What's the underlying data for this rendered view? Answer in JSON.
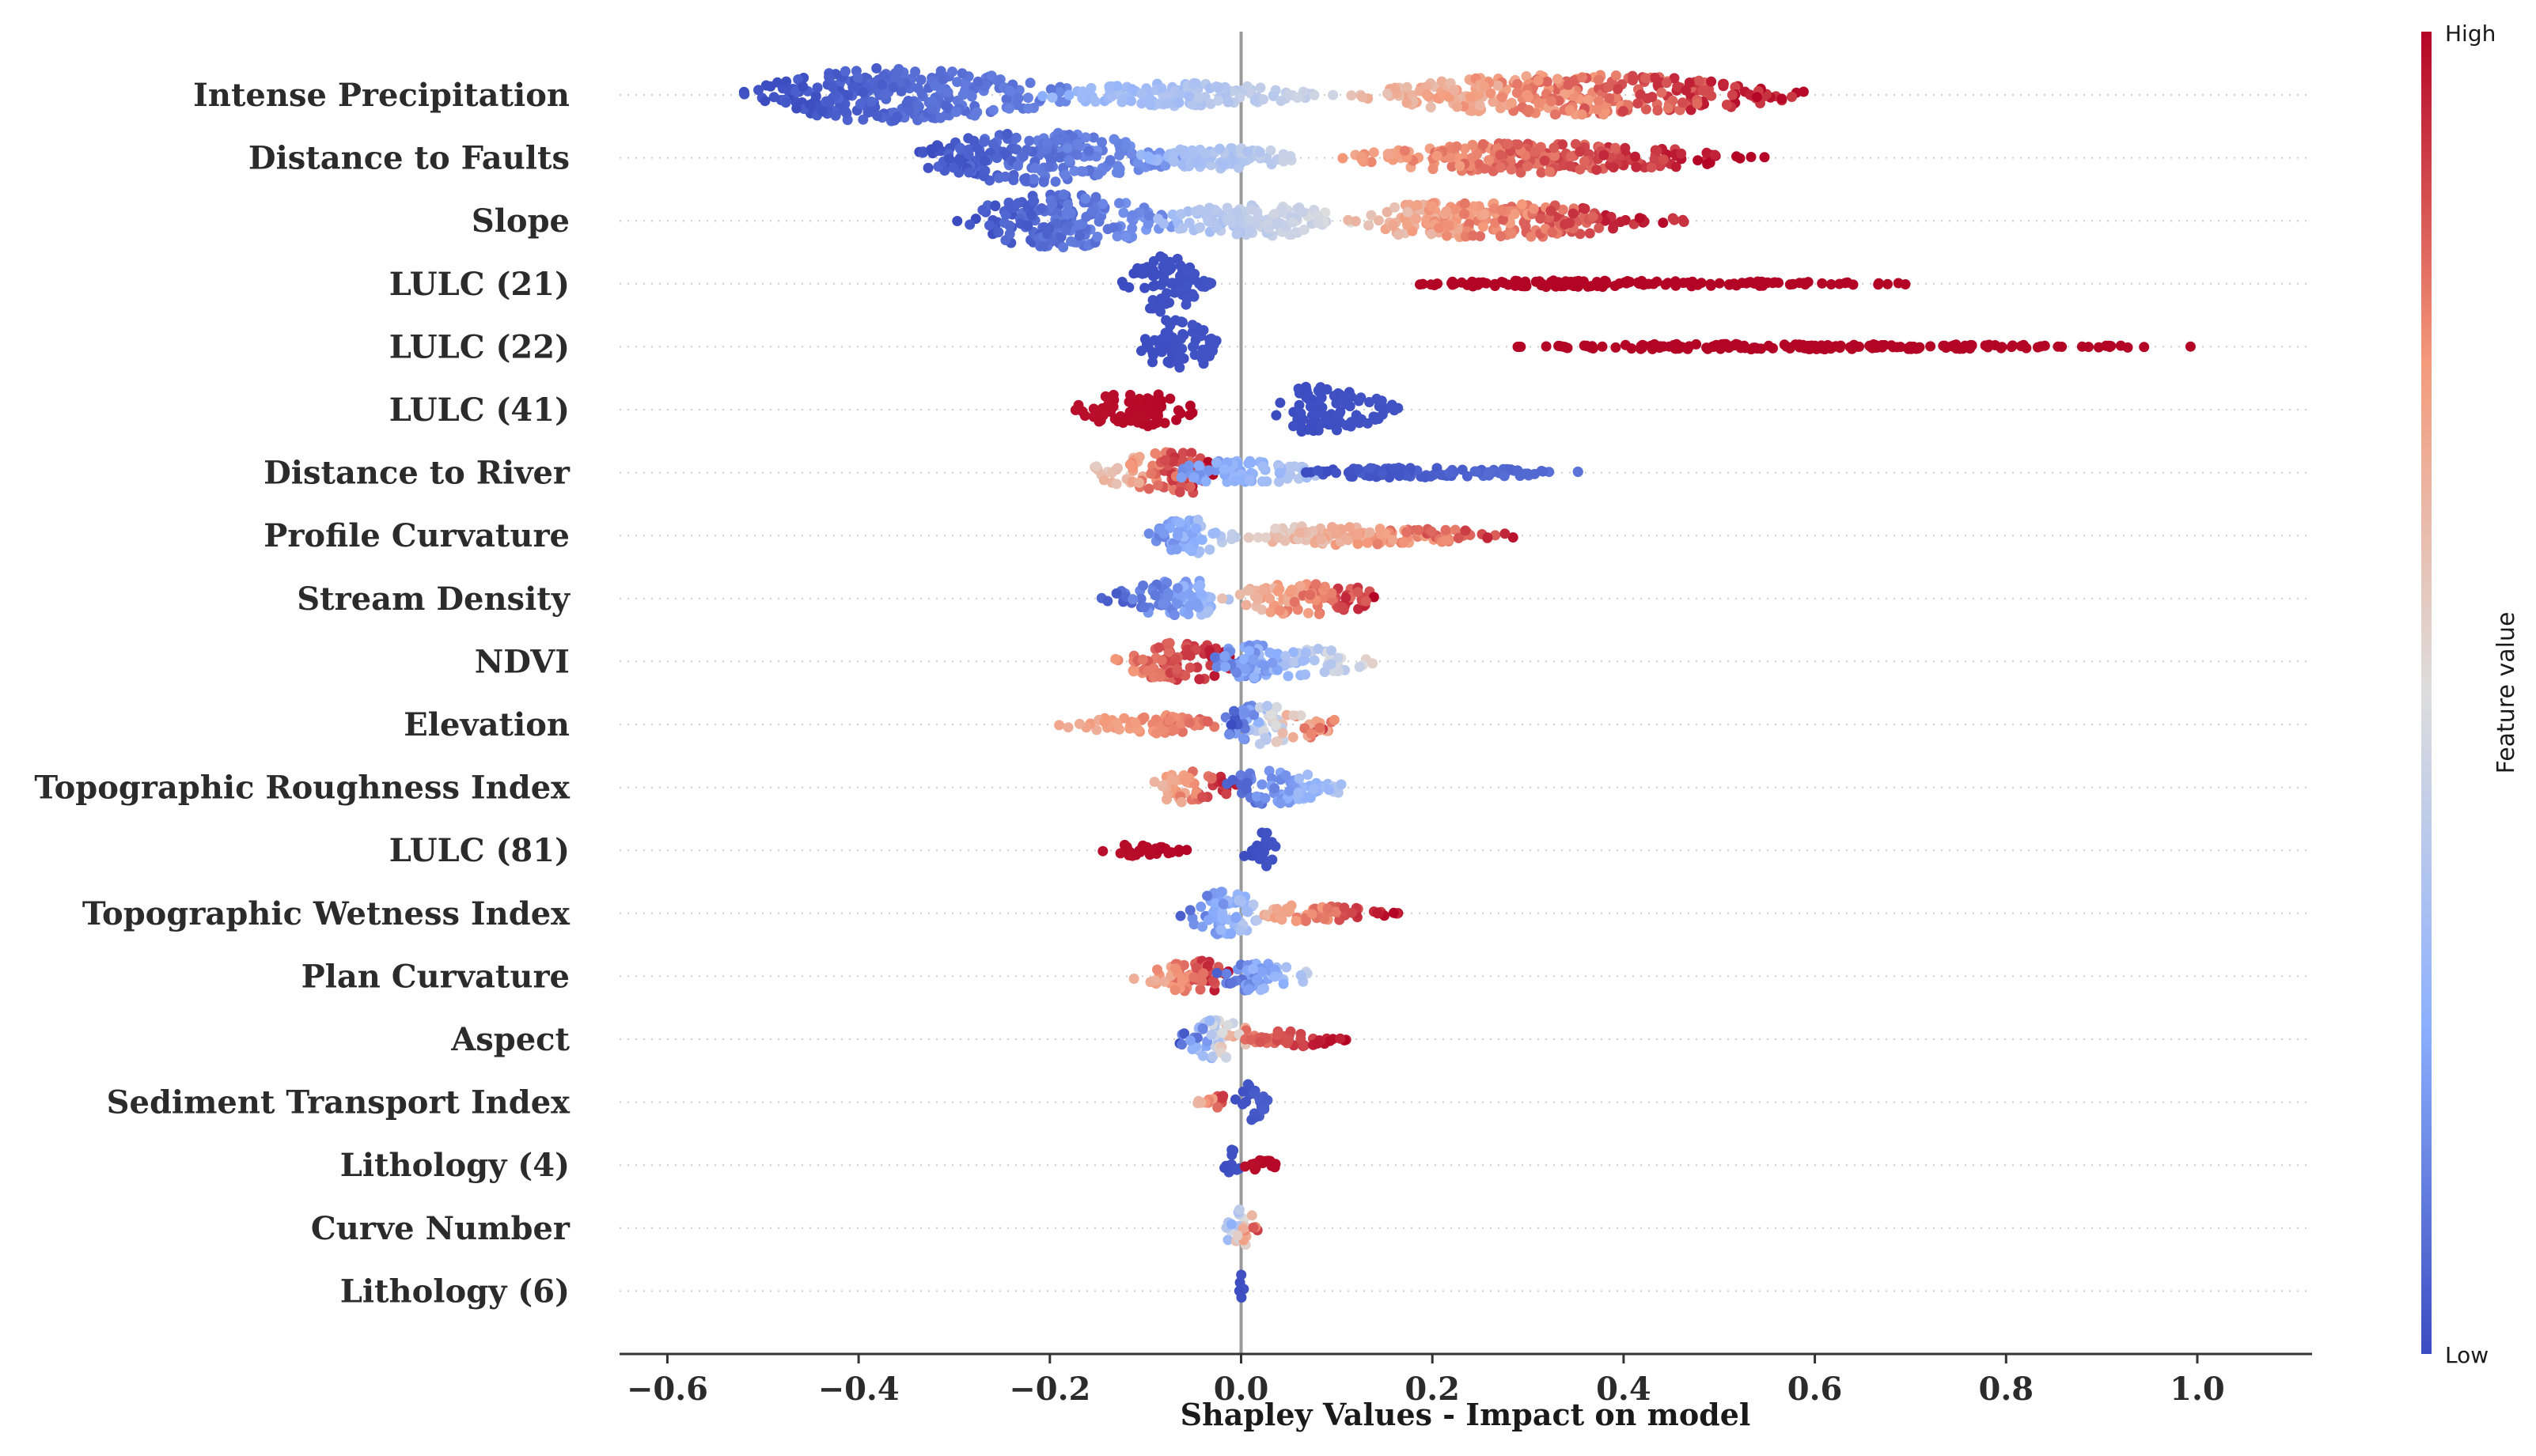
{
  "chart_data": {
    "type": "scatter",
    "subtype": "beeswarm",
    "xlabel": "Shapley Values - Impact on model",
    "xlim": [
      -0.65,
      1.12
    ],
    "xticks": [
      -0.6,
      -0.4,
      -0.2,
      0.0,
      0.2,
      0.4,
      0.6,
      0.8,
      1.0
    ],
    "xtick_labels": [
      "−0.6",
      "−0.4",
      "−0.2",
      "0.0",
      "0.2",
      "0.4",
      "0.6",
      "0.8",
      "1.0"
    ],
    "zero_line": true,
    "row_gridlines": "dotted",
    "colormap": {
      "name": "coolwarm",
      "low_color": "#3b4cc0",
      "mid_color": "#dddddd",
      "high_color": "#b40426",
      "label": "Feature value",
      "high_label": "High",
      "low_label": "Low"
    },
    "features": [
      {
        "name": "Intense Precipitation",
        "segments": [
          {
            "from": -0.53,
            "to": -0.15,
            "fv": [
              0.0,
              0.15
            ],
            "peak": -0.37,
            "thick": 1.0
          },
          {
            "from": -0.22,
            "to": 0.1,
            "fv": [
              0.25,
              0.45
            ],
            "peak": -0.05,
            "thick": 0.45
          },
          {
            "from": 0.1,
            "to": 0.61,
            "fv": [
              0.6,
              1.0
            ],
            "peak": 0.35,
            "thick": 0.75
          }
        ]
      },
      {
        "name": "Distance to Faults",
        "segments": [
          {
            "from": -0.36,
            "to": -0.05,
            "fv": [
              0.0,
              0.2
            ],
            "peak": -0.22,
            "thick": 0.95
          },
          {
            "from": -0.12,
            "to": 0.08,
            "fv": [
              0.25,
              0.45
            ],
            "peak": -0.03,
            "thick": 0.4
          },
          {
            "from": 0.09,
            "to": 0.55,
            "fv": [
              0.7,
              1.0
            ],
            "peak": 0.3,
            "thick": 0.55
          }
        ]
      },
      {
        "name": "Slope",
        "segments": [
          {
            "from": -0.3,
            "to": -0.05,
            "fv": [
              0.0,
              0.2
            ],
            "peak": -0.2,
            "thick": 1.0
          },
          {
            "from": -0.1,
            "to": 0.12,
            "fv": [
              0.3,
              0.5
            ],
            "peak": 0.02,
            "thick": 0.6
          },
          {
            "from": 0.1,
            "to": 0.47,
            "fv": [
              0.6,
              1.0
            ],
            "peak": 0.22,
            "thick": 0.7
          }
        ]
      },
      {
        "name": "LULC (21)",
        "segments": [
          {
            "from": -0.13,
            "to": -0.03,
            "fv": [
              0.0,
              0.02
            ],
            "peak": -0.08,
            "thick": 1.05
          },
          {
            "from": 0.17,
            "to": 0.74,
            "fv": [
              1.0,
              1.0
            ],
            "peak": 0.3,
            "thick": 0.12
          }
        ]
      },
      {
        "name": "LULC (22)",
        "segments": [
          {
            "from": -0.11,
            "to": -0.02,
            "fv": [
              0.0,
              0.02
            ],
            "peak": -0.07,
            "thick": 1.05
          },
          {
            "from": 0.28,
            "to": 1.04,
            "fv": [
              1.0,
              1.0
            ],
            "peak": 0.5,
            "thick": 0.1
          }
        ]
      },
      {
        "name": "LULC (41)",
        "segments": [
          {
            "from": -0.18,
            "to": -0.04,
            "fv": [
              0.98,
              1.0
            ],
            "peak": -0.11,
            "thick": 0.65
          },
          {
            "from": 0.03,
            "to": 0.17,
            "fv": [
              0.0,
              0.02
            ],
            "peak": 0.07,
            "thick": 0.85
          }
        ]
      },
      {
        "name": "Distance to River",
        "segments": [
          {
            "from": -0.17,
            "to": -0.02,
            "fv": [
              0.55,
              1.0
            ],
            "peak": -0.06,
            "thick": 0.8
          },
          {
            "from": -0.08,
            "to": 0.1,
            "fv": [
              0.15,
              0.4
            ],
            "peak": -0.01,
            "thick": 0.45
          },
          {
            "from": 0.05,
            "to": 0.39,
            "fv": [
              0.0,
              0.1
            ],
            "peak": 0.15,
            "thick": 0.18
          }
        ]
      },
      {
        "name": "Profile Curvature",
        "segments": [
          {
            "from": -0.1,
            "to": 0.0,
            "fv": [
              0.1,
              0.45
            ],
            "peak": -0.05,
            "thick": 0.7
          },
          {
            "from": 0.0,
            "to": 0.33,
            "fv": [
              0.55,
              1.0
            ],
            "peak": 0.06,
            "thick": 0.35
          }
        ]
      },
      {
        "name": "Stream Density",
        "segments": [
          {
            "from": -0.15,
            "to": -0.01,
            "fv": [
              0.0,
              0.35
            ],
            "peak": -0.05,
            "thick": 0.7
          },
          {
            "from": -0.02,
            "to": 0.17,
            "fv": [
              0.6,
              1.0
            ],
            "peak": 0.06,
            "thick": 0.6
          }
        ]
      },
      {
        "name": "NDVI",
        "segments": [
          {
            "from": -0.14,
            "to": 0.0,
            "fv": [
              0.75,
              1.0
            ],
            "peak": -0.06,
            "thick": 0.75
          },
          {
            "from": -0.04,
            "to": 0.15,
            "fv": [
              0.1,
              0.55
            ],
            "peak": 0.01,
            "thick": 0.65
          }
        ]
      },
      {
        "name": "Elevation",
        "segments": [
          {
            "from": -0.21,
            "to": -0.02,
            "fv": [
              0.65,
              0.85
            ],
            "peak": -0.07,
            "thick": 0.35
          },
          {
            "from": -0.03,
            "to": 0.11,
            "fv": [
              0.0,
              1.0
            ],
            "peak": 0.02,
            "thick": 0.75
          }
        ]
      },
      {
        "name": "Topographic Roughness Index",
        "segments": [
          {
            "from": -0.1,
            "to": 0.0,
            "fv": [
              0.6,
              1.0
            ],
            "peak": -0.05,
            "thick": 0.65
          },
          {
            "from": -0.02,
            "to": 0.12,
            "fv": [
              0.05,
              0.4
            ],
            "peak": 0.02,
            "thick": 0.65
          }
        ]
      },
      {
        "name": "LULC (81)",
        "segments": [
          {
            "from": -0.15,
            "to": -0.05,
            "fv": [
              0.98,
              1.0
            ],
            "peak": -0.11,
            "thick": 0.22
          },
          {
            "from": 0.0,
            "to": 0.04,
            "fv": [
              0.0,
              0.02
            ],
            "peak": 0.02,
            "thick": 0.75
          }
        ]
      },
      {
        "name": "Topographic Wetness Index",
        "segments": [
          {
            "from": -0.07,
            "to": 0.04,
            "fv": [
              0.05,
              0.45
            ],
            "peak": -0.02,
            "thick": 0.8
          },
          {
            "from": 0.02,
            "to": 0.17,
            "fv": [
              0.65,
              1.0
            ],
            "peak": 0.06,
            "thick": 0.3
          }
        ]
      },
      {
        "name": "Plan Curvature",
        "segments": [
          {
            "from": -0.12,
            "to": 0.0,
            "fv": [
              0.6,
              1.0
            ],
            "peak": -0.04,
            "thick": 0.6
          },
          {
            "from": -0.03,
            "to": 0.08,
            "fv": [
              0.05,
              0.45
            ],
            "peak": 0.01,
            "thick": 0.55
          }
        ]
      },
      {
        "name": "Aspect",
        "segments": [
          {
            "from": -0.07,
            "to": 0.02,
            "fv": [
              0.0,
              0.85
            ],
            "peak": -0.02,
            "thick": 0.75
          },
          {
            "from": 0.0,
            "to": 0.12,
            "fv": [
              0.8,
              1.0
            ],
            "peak": 0.04,
            "thick": 0.3
          }
        ]
      },
      {
        "name": "Sediment Transport Index",
        "segments": [
          {
            "from": -0.05,
            "to": -0.01,
            "fv": [
              0.55,
              1.0
            ],
            "peak": -0.02,
            "thick": 0.25
          },
          {
            "from": -0.01,
            "to": 0.03,
            "fv": [
              0.0,
              0.05
            ],
            "peak": 0.01,
            "thick": 0.7
          }
        ]
      },
      {
        "name": "Lithology (4)",
        "segments": [
          {
            "from": -0.02,
            "to": 0.0,
            "fv": [
              0.0,
              0.02
            ],
            "peak": -0.01,
            "thick": 0.65
          },
          {
            "from": 0.0,
            "to": 0.05,
            "fv": [
              0.98,
              1.0
            ],
            "peak": 0.02,
            "thick": 0.18
          }
        ]
      },
      {
        "name": "Curve Number",
        "segments": [
          {
            "from": -0.025,
            "to": 0.02,
            "fv": [
              0.0,
              1.0
            ],
            "peak": 0.0,
            "thick": 0.7
          }
        ]
      },
      {
        "name": "Lithology (6)",
        "segments": [
          {
            "from": -0.003,
            "to": 0.003,
            "fv": [
              0.0,
              0.02
            ],
            "peak": 0.0,
            "thick": 0.75
          }
        ]
      }
    ]
  }
}
